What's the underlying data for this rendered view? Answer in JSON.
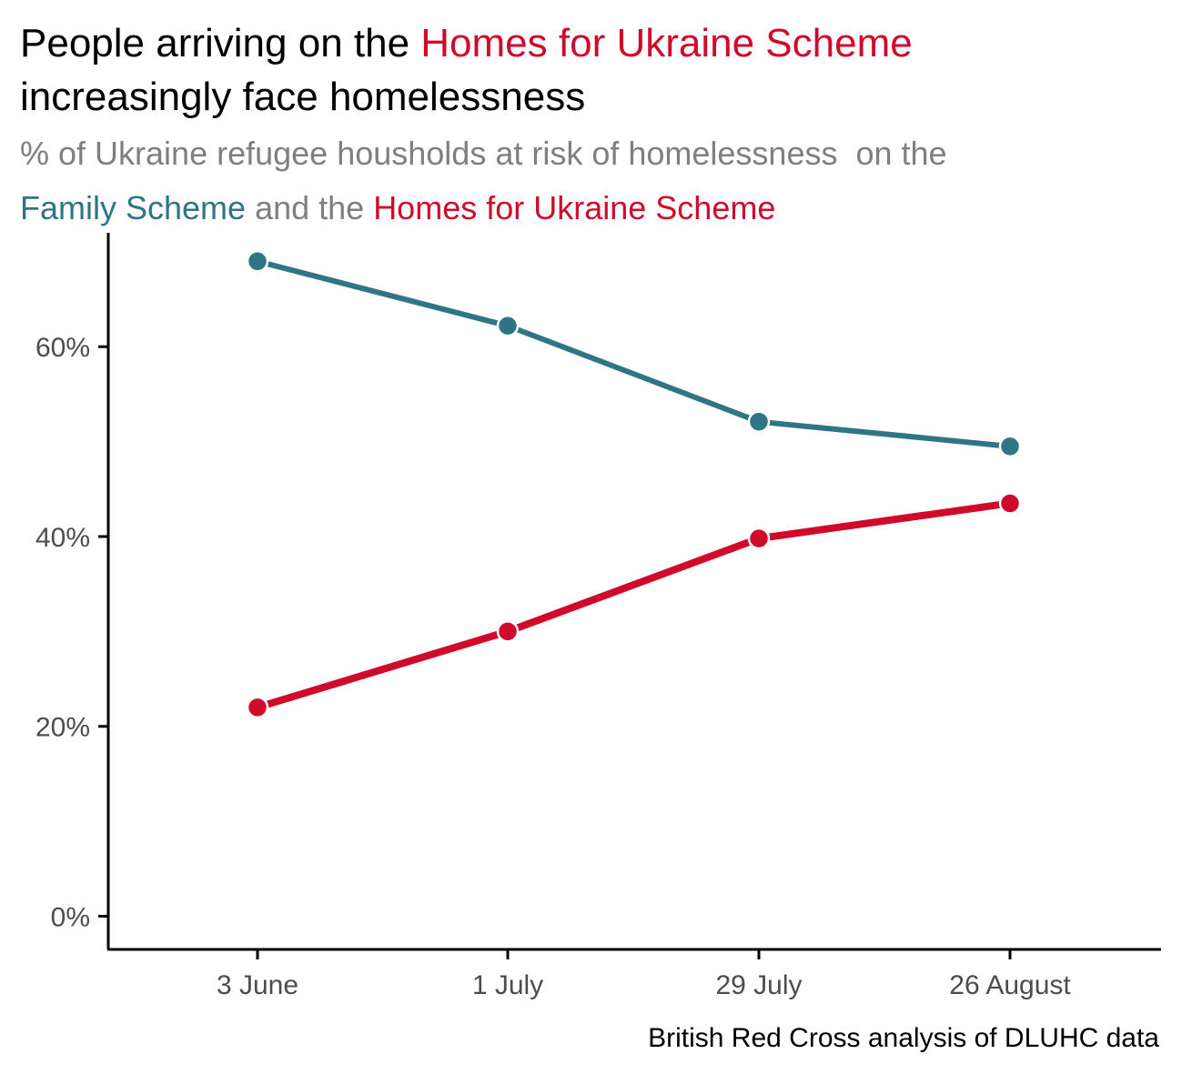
{
  "chart_data": {
    "type": "line",
    "title": {
      "line1_prefix": "People arriving on the ",
      "line1_highlight": "Homes for Ukraine Scheme",
      "line2": "increasingly face homelessness"
    },
    "subtitle": {
      "line1": "% of Ukraine refugee housholds at risk of homelessness  on the",
      "line2_series1": "Family Scheme",
      "line2_mid": " and the ",
      "line2_series2": "Homes for Ukraine Scheme"
    },
    "caption": "British Red Cross analysis of DLUHC data",
    "categories": [
      "3 June",
      "1 July",
      "29 July",
      "26 August"
    ],
    "y_ticks": [
      0,
      20,
      40,
      60
    ],
    "y_tick_labels": [
      "0%",
      "20%",
      "40%",
      "60%"
    ],
    "ylim": [
      -3.5,
      72
    ],
    "grid": false,
    "legend": "none",
    "series": [
      {
        "name": "Family Scheme",
        "color": "#2e7585",
        "values": [
          69.0,
          62.2,
          52.1,
          49.5
        ]
      },
      {
        "name": "Homes for Ukraine Scheme",
        "color": "#cf0a2b",
        "values": [
          22.0,
          30.0,
          39.8,
          43.5
        ]
      }
    ]
  }
}
